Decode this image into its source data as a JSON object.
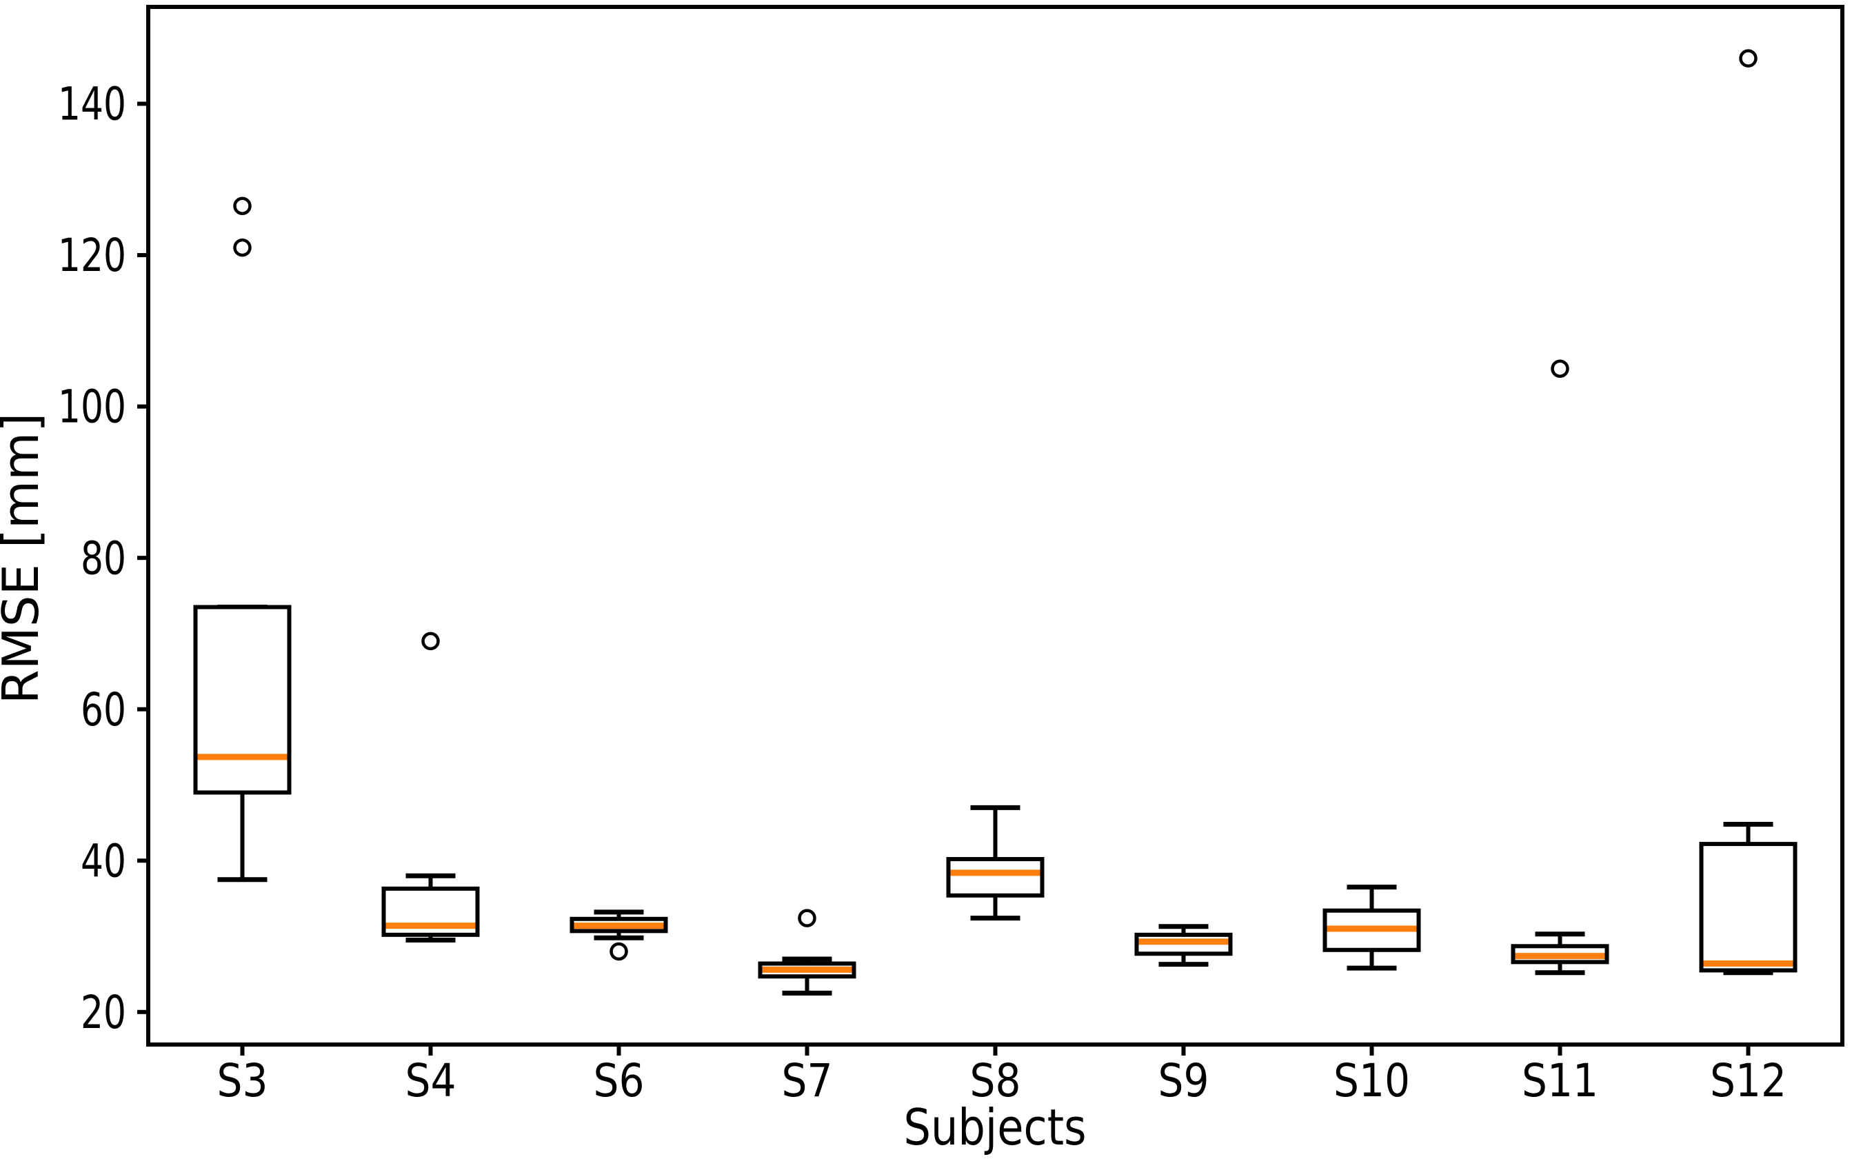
{
  "figure": {
    "background_color": "#ffffff",
    "frame_color": "#000000"
  },
  "chart_data": {
    "type": "boxplot",
    "title": "",
    "xlabel": "Subjects",
    "ylabel": "RMSE [mm]",
    "categories": [
      "S3",
      "S4",
      "S6",
      "S7",
      "S8",
      "S9",
      "S10",
      "S11",
      "S12"
    ],
    "yticks": [
      20,
      40,
      60,
      80,
      100,
      120,
      140
    ],
    "ylim": [
      15.7,
      152.8
    ],
    "grid": false,
    "legend": "none",
    "median_color": "#ff7f0e",
    "box_edge_color": "#000000",
    "flier_marker": "open-circle",
    "boxes": [
      {
        "label": "S3",
        "whislo": 37.5,
        "q1": 49.0,
        "med": 53.7,
        "q3": 73.5,
        "whishi": 73.5,
        "fliers": [
          121.0,
          126.5
        ]
      },
      {
        "label": "S4",
        "whislo": 29.5,
        "q1": 30.2,
        "med": 31.4,
        "q3": 36.3,
        "whishi": 38.0,
        "fliers": [
          69.0
        ]
      },
      {
        "label": "S6",
        "whislo": 29.8,
        "q1": 30.7,
        "med": 31.4,
        "q3": 32.3,
        "whishi": 33.2,
        "fliers": [
          28.0
        ]
      },
      {
        "label": "S7",
        "whislo": 22.5,
        "q1": 24.7,
        "med": 25.6,
        "q3": 26.4,
        "whishi": 27.0,
        "fliers": [
          32.4
        ]
      },
      {
        "label": "S8",
        "whislo": 32.4,
        "q1": 35.4,
        "med": 38.4,
        "q3": 40.2,
        "whishi": 47.0,
        "fliers": []
      },
      {
        "label": "S9",
        "whislo": 26.3,
        "q1": 27.7,
        "med": 29.3,
        "q3": 30.2,
        "whishi": 31.3,
        "fliers": []
      },
      {
        "label": "S10",
        "whislo": 25.8,
        "q1": 28.2,
        "med": 31.0,
        "q3": 33.4,
        "whishi": 36.5,
        "fliers": []
      },
      {
        "label": "S11",
        "whislo": 25.2,
        "q1": 26.6,
        "med": 27.4,
        "q3": 28.7,
        "whishi": 30.3,
        "fliers": [
          105.0
        ]
      },
      {
        "label": "S12",
        "whislo": 25.2,
        "q1": 25.5,
        "med": 26.4,
        "q3": 42.2,
        "whishi": 44.8,
        "fliers": [
          146.0
        ]
      }
    ]
  }
}
